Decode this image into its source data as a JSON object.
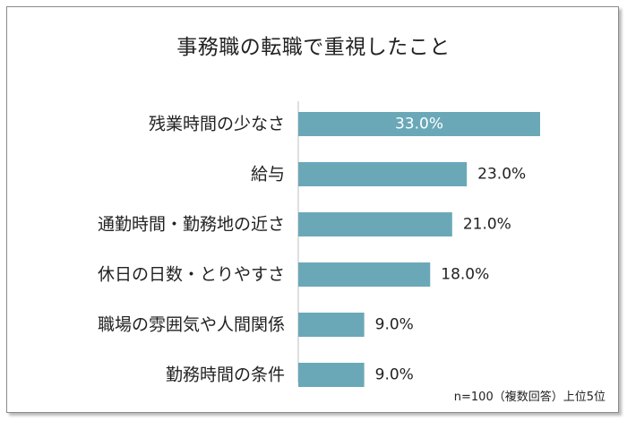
{
  "chart_data": {
    "type": "bar",
    "orientation": "horizontal",
    "title": "事務職の転職で重視したこと",
    "categories": [
      "残業時間の少なさ",
      "給与",
      "通勤時間・勤務地の近さ",
      "休日の日数・とりやすさ",
      "職場の雰囲気や人間関係",
      "勤務時間の条件"
    ],
    "values": [
      33.0,
      23.0,
      21.0,
      18.0,
      9.0,
      9.0
    ],
    "value_labels": [
      "33.0%",
      "23.0%",
      "21.0%",
      "18.0%",
      "9.0%",
      "9.0%"
    ],
    "xlim": [
      0,
      36
    ],
    "bar_color": "#6aa8b8",
    "grid": false,
    "legend": "none"
  },
  "footnote": "n=100（複数回答）上位5位"
}
